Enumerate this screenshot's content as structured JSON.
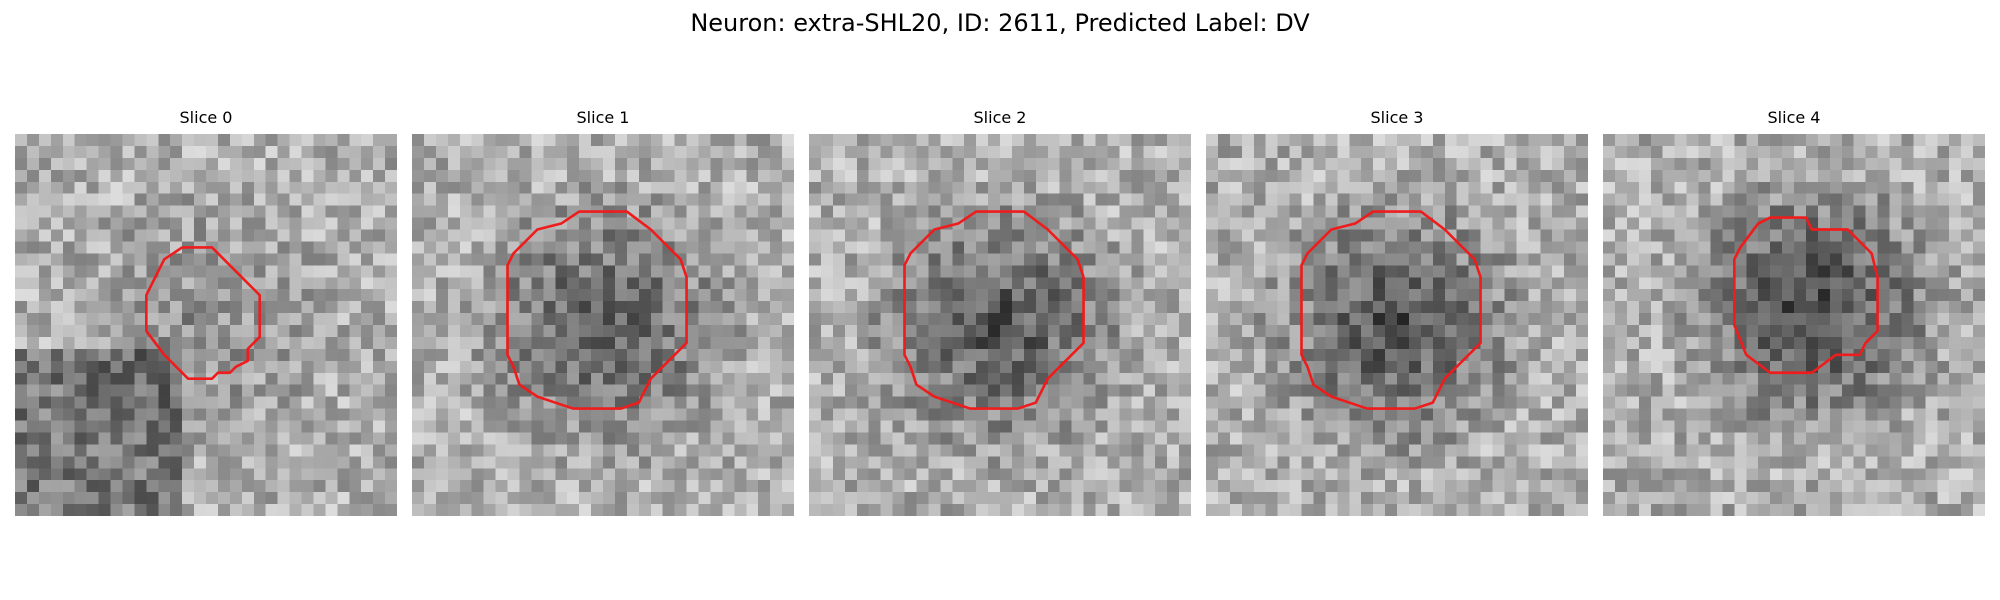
{
  "figure": {
    "title": "Neuron: extra-SHL20, ID: 2611, Predicted Label: DV"
  },
  "panels": [
    {
      "title": "Slice 0",
      "center_shade": 150,
      "center_strength": 0.25,
      "outline": "small-octagon"
    },
    {
      "title": "Slice 1",
      "center_shade": 75,
      "center_strength": 0.6,
      "outline": "large-octagon"
    },
    {
      "title": "Slice 2",
      "center_shade": 80,
      "center_strength": 0.65,
      "outline": "large-octagon"
    },
    {
      "title": "Slice 3",
      "center_shade": 70,
      "center_strength": 0.65,
      "outline": "large-octagon"
    },
    {
      "title": "Slice 4",
      "center_shade": 55,
      "center_strength": 0.7,
      "outline": "upper-octagon"
    }
  ],
  "colors": {
    "outline": "#ee1c1c",
    "background": "#ffffff"
  },
  "colormap": "grayscale"
}
